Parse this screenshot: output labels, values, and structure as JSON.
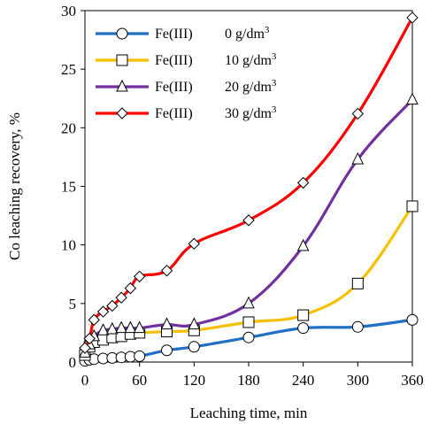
{
  "chart_data": {
    "type": "line",
    "xlabel": "Leaching time, min",
    "ylabel": "Co leaching recovery, %",
    "xlim": [
      0,
      360
    ],
    "ylim": [
      0,
      30
    ],
    "xticks": [
      0,
      60,
      120,
      180,
      240,
      300,
      360
    ],
    "yticks": [
      0,
      5,
      10,
      15,
      20,
      25,
      30
    ],
    "grid": false,
    "legend_position": "top-left",
    "series": [
      {
        "name": "Fe(III)  0 g/dm³",
        "legend_main": "Fe(III)",
        "legend_value": "0 g/dm",
        "legend_sup": "3",
        "color": "#1f6fc5",
        "marker": "circle",
        "x": [
          0,
          5,
          10,
          20,
          30,
          40,
          50,
          60,
          90,
          120,
          180,
          240,
          300,
          360
        ],
        "y": [
          0.1,
          0.2,
          0.25,
          0.3,
          0.35,
          0.4,
          0.45,
          0.5,
          1.0,
          1.3,
          2.1,
          2.9,
          3.0,
          3.6
        ]
      },
      {
        "name": "Fe(III)  10 g/dm³",
        "legend_main": "Fe(III)",
        "legend_value": "10 g/dm",
        "legend_sup": "3",
        "color": "#f5c000",
        "marker": "square",
        "x": [
          0,
          5,
          10,
          20,
          30,
          40,
          50,
          60,
          90,
          120,
          180,
          240,
          300,
          360
        ],
        "y": [
          0.6,
          1.3,
          1.7,
          1.9,
          2.1,
          2.2,
          2.4,
          2.5,
          2.6,
          2.7,
          3.4,
          4.0,
          6.7,
          13.3
        ]
      },
      {
        "name": "Fe(III)  20 g/dm³",
        "legend_main": "Fe(III)",
        "legend_value": "20 g/dm",
        "legend_sup": "3",
        "color": "#7030a0",
        "marker": "triangle",
        "x": [
          0,
          5,
          10,
          20,
          30,
          40,
          50,
          60,
          90,
          120,
          180,
          240,
          300,
          360
        ],
        "y": [
          0.8,
          1.5,
          2.2,
          2.7,
          2.8,
          2.9,
          2.9,
          2.9,
          3.2,
          3.2,
          5.0,
          9.9,
          17.3,
          22.4
        ]
      },
      {
        "name": "Fe(III)  30 g/dm³",
        "legend_main": "Fe(III)",
        "legend_value": "30 g/dm",
        "legend_sup": "3",
        "color": "#ff0000",
        "marker": "diamond",
        "x": [
          0,
          5,
          10,
          20,
          30,
          40,
          50,
          60,
          90,
          120,
          180,
          240,
          300,
          360
        ],
        "y": [
          1.2,
          2.0,
          3.6,
          4.3,
          4.8,
          5.5,
          6.3,
          7.3,
          7.8,
          10.1,
          12.1,
          15.3,
          21.2,
          29.4
        ]
      }
    ]
  }
}
